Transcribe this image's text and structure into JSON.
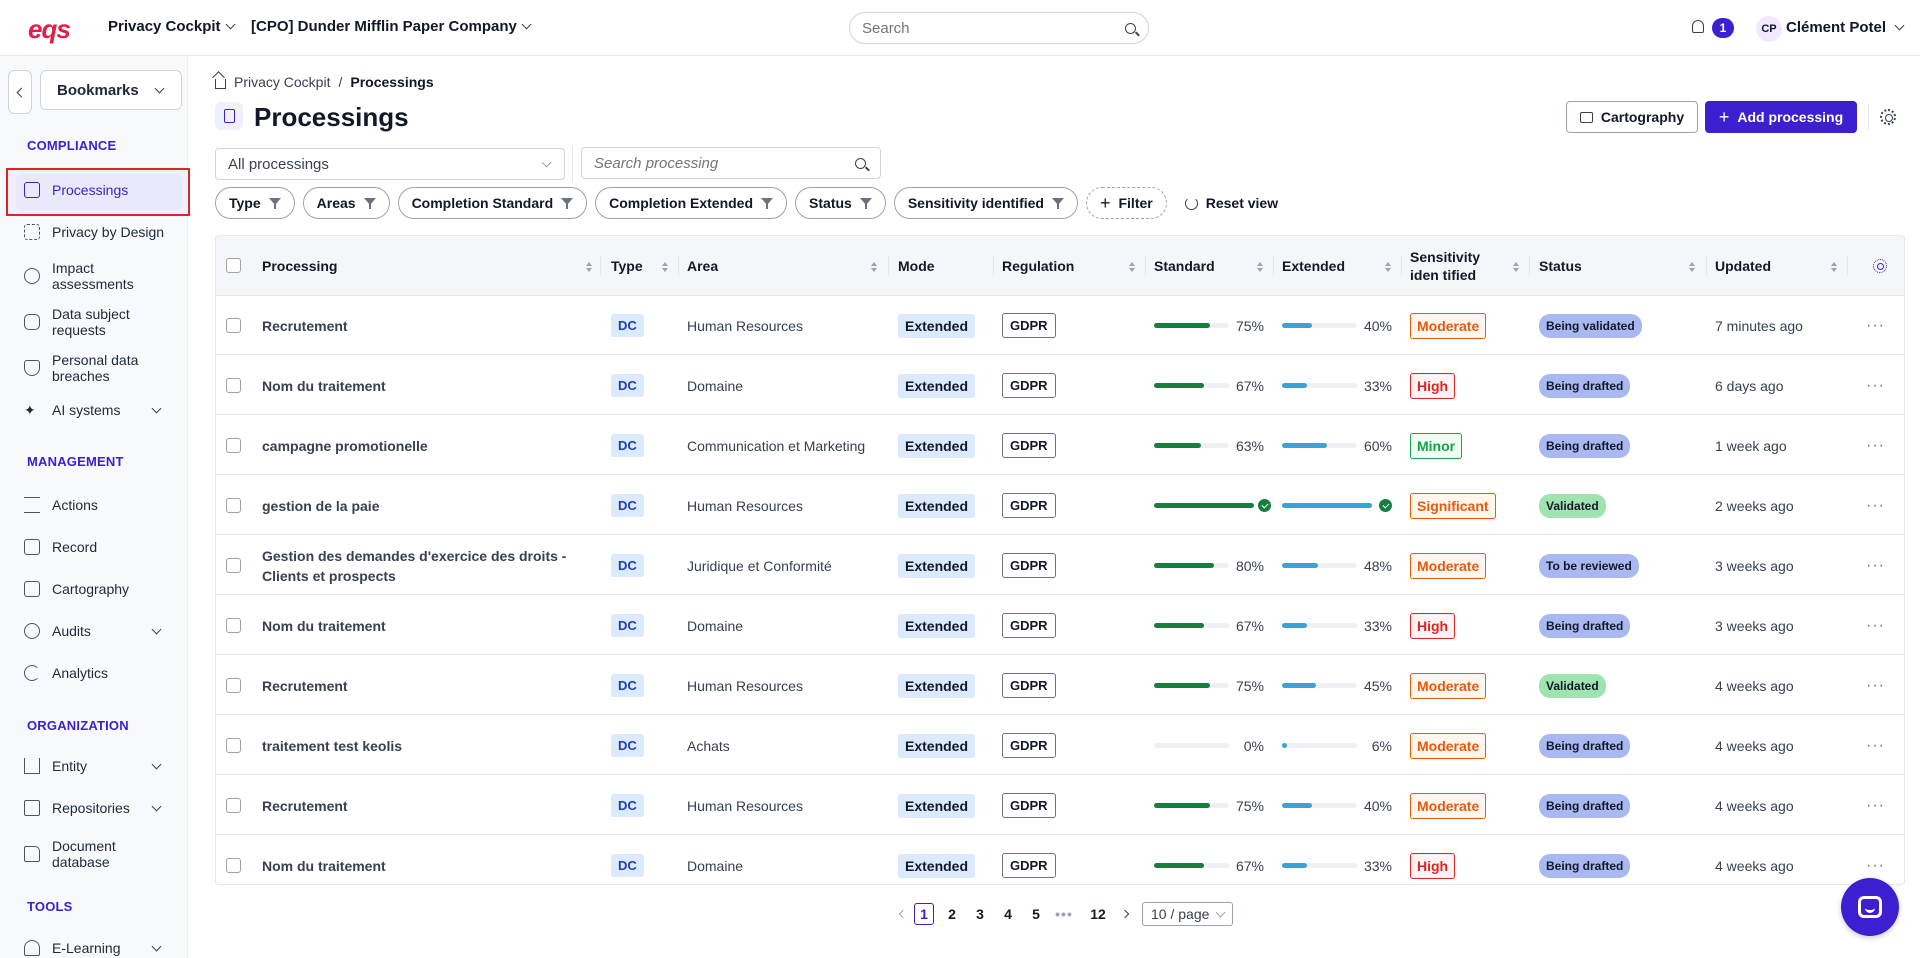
{
  "topbar": {
    "logo": "eqs",
    "app_selector": "Privacy Cockpit",
    "company_selector": "[CPO] Dunder Mifflin Paper Company",
    "search_placeholder": "Search",
    "notification_count": "1",
    "user_initials": "CP",
    "user_name": "Clément Potel"
  },
  "sidebar": {
    "bookmarks_label": "Bookmarks",
    "sections": {
      "compliance": "COMPLIANCE",
      "management": "MANAGEMENT",
      "organization": "ORGANIZATION",
      "tools": "TOOLS"
    },
    "items": {
      "processings": "Processings",
      "privacy_by_design": "Privacy by Design",
      "impact_assessments": "Impact assessments",
      "dsr": "Data subject requests",
      "breaches": "Personal data breaches",
      "ai_systems": "AI systems",
      "actions": "Actions",
      "record": "Record",
      "cartography": "Cartography",
      "audits": "Audits",
      "analytics": "Analytics",
      "entity": "Entity",
      "repositories": "Repositories",
      "document_database": "Document database",
      "elearning": "E-Learning"
    }
  },
  "breadcrumb": {
    "home": "Privacy Cockpit",
    "current": "Processings"
  },
  "page": {
    "title": "Processings",
    "cartography_button": "Cartography",
    "add_button": "Add processing",
    "scope_select": "All processings",
    "search_placeholder": "Search processing"
  },
  "filters": {
    "chips": [
      "Type",
      "Areas",
      "Completion Standard",
      "Completion Extended",
      "Status",
      "Sensitivity identified"
    ],
    "add_filter": "Filter",
    "reset": "Reset view"
  },
  "table": {
    "columns": {
      "processing": "Processing",
      "type": "Type",
      "area": "Area",
      "mode": "Mode",
      "regulation": "Regulation",
      "standard": "Standard",
      "extended": "Extended",
      "sensitivity": "Sensitivity iden tified",
      "status": "Status",
      "updated": "Updated"
    },
    "rows": [
      {
        "name": "Recrutement",
        "type": "DC",
        "area": "Human Resources",
        "mode": "Extended",
        "regulation": "GDPR",
        "standard": 75,
        "standard_label": "75%",
        "extended": 40,
        "extended_label": "40%",
        "sensitivity": "Moderate",
        "status": "Being validated",
        "updated": "7 minutes ago"
      },
      {
        "name": "Nom du traitement",
        "type": "DC",
        "area": "Domaine",
        "mode": "Extended",
        "regulation": "GDPR",
        "standard": 67,
        "standard_label": "67%",
        "extended": 33,
        "extended_label": "33%",
        "sensitivity": "High",
        "status": "Being drafted",
        "updated": "6 days ago"
      },
      {
        "name": "campagne promotionelle",
        "type": "DC",
        "area": "Communication et Marketing",
        "mode": "Extended",
        "regulation": "GDPR",
        "standard": 63,
        "standard_label": "63%",
        "extended": 60,
        "extended_label": "60%",
        "sensitivity": "Minor",
        "status": "Being drafted",
        "updated": "1 week ago"
      },
      {
        "name": "gestion de la paie",
        "type": "DC",
        "area": "Human Resources",
        "mode": "Extended",
        "regulation": "GDPR",
        "standard": 100,
        "standard_label": "",
        "extended": 100,
        "extended_label": "",
        "sensitivity": "Significant",
        "status": "Validated",
        "updated": "2 weeks ago"
      },
      {
        "name": "Gestion des demandes d'exercice des droits - Clients et prospects",
        "type": "DC",
        "area": "Juridique et Conformité",
        "mode": "Extended",
        "regulation": "GDPR",
        "standard": 80,
        "standard_label": "80%",
        "extended": 48,
        "extended_label": "48%",
        "sensitivity": "Moderate",
        "status": "To be reviewed",
        "updated": "3 weeks ago"
      },
      {
        "name": "Nom du traitement",
        "type": "DC",
        "area": "Domaine",
        "mode": "Extended",
        "regulation": "GDPR",
        "standard": 67,
        "standard_label": "67%",
        "extended": 33,
        "extended_label": "33%",
        "sensitivity": "High",
        "status": "Being drafted",
        "updated": "3 weeks ago"
      },
      {
        "name": "Recrutement",
        "type": "DC",
        "area": "Human Resources",
        "mode": "Extended",
        "regulation": "GDPR",
        "standard": 75,
        "standard_label": "75%",
        "extended": 45,
        "extended_label": "45%",
        "sensitivity": "Moderate",
        "status": "Validated",
        "updated": "4 weeks ago"
      },
      {
        "name": "traitement test keolis",
        "type": "DC",
        "area": "Achats",
        "mode": "Extended",
        "regulation": "GDPR",
        "standard": 0,
        "standard_label": "0%",
        "extended": 6,
        "extended_label": "6%",
        "sensitivity": "Moderate",
        "status": "Being drafted",
        "updated": "4 weeks ago"
      },
      {
        "name": "Recrutement",
        "type": "DC",
        "area": "Human Resources",
        "mode": "Extended",
        "regulation": "GDPR",
        "standard": 75,
        "standard_label": "75%",
        "extended": 40,
        "extended_label": "40%",
        "sensitivity": "Moderate",
        "status": "Being drafted",
        "updated": "4 weeks ago"
      },
      {
        "name": "Nom du traitement",
        "type": "DC",
        "area": "Domaine",
        "mode": "Extended",
        "regulation": "GDPR",
        "standard": 67,
        "standard_label": "67%",
        "extended": 33,
        "extended_label": "33%",
        "sensitivity": "High",
        "status": "Being drafted",
        "updated": "4 weeks ago"
      }
    ]
  },
  "pagination": {
    "pages": [
      "1",
      "2",
      "3",
      "4",
      "5"
    ],
    "ellipsis": "•••",
    "last": "12",
    "current": "1",
    "page_size": "10 / page"
  },
  "colors": {
    "accent": "#3b1fd1",
    "standard_bar": "#15803d",
    "extended_bar": "#3aa3d4",
    "moderate": "#ea580c",
    "high": "#dc2626",
    "minor": "#16a34a",
    "significant": "#ea580c",
    "status_blue": "#aab8f2",
    "status_green": "#9ee3b0"
  }
}
